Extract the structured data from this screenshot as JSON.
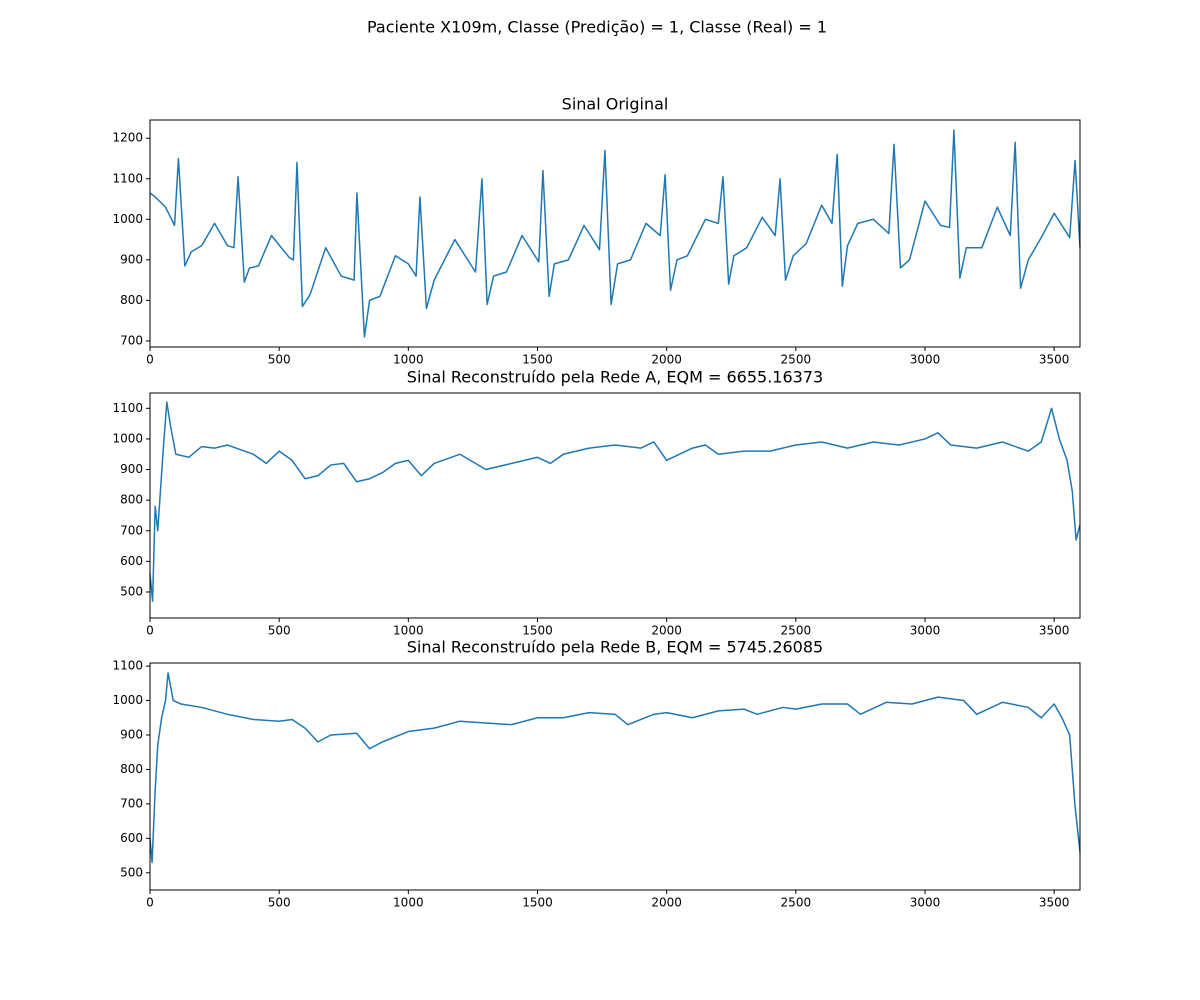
{
  "title": "Paciente X109m, Classe (Predição) = 1, Classe (Real) = 1",
  "chart_data": [
    {
      "type": "line",
      "title": "Sinal Original",
      "color": "#1f77b4",
      "xlim": [
        0,
        3600
      ],
      "xticks": [
        0,
        500,
        1000,
        1500,
        2000,
        2500,
        3000,
        3500
      ],
      "ylim": [
        685,
        1245
      ],
      "yticks": [
        700,
        800,
        900,
        1000,
        1100,
        1200
      ],
      "x": [
        0,
        20,
        60,
        95,
        110,
        135,
        160,
        200,
        250,
        300,
        325,
        341,
        365,
        385,
        420,
        470,
        540,
        555,
        569,
        590,
        620,
        680,
        740,
        790,
        801,
        830,
        850,
        890,
        950,
        1000,
        1030,
        1045,
        1070,
        1100,
        1180,
        1260,
        1285,
        1305,
        1330,
        1380,
        1440,
        1505,
        1521,
        1545,
        1565,
        1620,
        1680,
        1740,
        1761,
        1785,
        1810,
        1860,
        1920,
        1975,
        1994,
        2015,
        2040,
        2080,
        2150,
        2200,
        2218,
        2240,
        2260,
        2310,
        2370,
        2420,
        2439,
        2460,
        2490,
        2540,
        2600,
        2640,
        2660,
        2680,
        2700,
        2740,
        2800,
        2860,
        2880,
        2905,
        2940,
        3000,
        3060,
        3095,
        3112,
        3135,
        3160,
        3220,
        3280,
        3330,
        3349,
        3370,
        3400,
        3450,
        3500,
        3560,
        3581,
        3600
      ],
      "values": [
        1065,
        1055,
        1030,
        985,
        1150,
        885,
        920,
        935,
        990,
        935,
        930,
        1105,
        845,
        880,
        885,
        960,
        905,
        900,
        1140,
        785,
        815,
        930,
        860,
        850,
        1065,
        710,
        800,
        810,
        910,
        890,
        860,
        1055,
        780,
        850,
        950,
        870,
        1100,
        790,
        860,
        870,
        960,
        895,
        1120,
        810,
        890,
        900,
        985,
        925,
        1170,
        790,
        890,
        900,
        990,
        960,
        1110,
        825,
        900,
        910,
        1000,
        990,
        1105,
        840,
        910,
        930,
        1005,
        960,
        1100,
        850,
        910,
        940,
        1035,
        990,
        1160,
        835,
        935,
        990,
        1000,
        965,
        1185,
        880,
        900,
        1045,
        985,
        980,
        1220,
        855,
        930,
        930,
        1030,
        960,
        1190,
        830,
        900,
        955,
        1015,
        955,
        1145,
        930
      ]
    },
    {
      "type": "line",
      "title": "Sinal Reconstruído pela Rede A, EQM = 6655.16373",
      "color": "#1f77b4",
      "xlim": [
        0,
        3600
      ],
      "xticks": [
        0,
        500,
        1000,
        1500,
        2000,
        2500,
        3000,
        3500
      ],
      "ylim": [
        415,
        1150
      ],
      "yticks": [
        500,
        600,
        700,
        800,
        900,
        1000,
        1100
      ],
      "x": [
        0,
        10,
        20,
        30,
        50,
        65,
        80,
        100,
        150,
        200,
        250,
        300,
        400,
        450,
        500,
        550,
        600,
        650,
        700,
        750,
        800,
        850,
        900,
        950,
        1000,
        1050,
        1100,
        1200,
        1300,
        1400,
        1500,
        1550,
        1600,
        1700,
        1800,
        1900,
        1950,
        2000,
        2100,
        2150,
        2200,
        2300,
        2400,
        2500,
        2600,
        2700,
        2800,
        2900,
        3000,
        3050,
        3100,
        3200,
        3300,
        3400,
        3450,
        3490,
        3520,
        3550,
        3570,
        3585,
        3600
      ],
      "values": [
        560,
        470,
        780,
        700,
        950,
        1120,
        1040,
        950,
        940,
        975,
        970,
        980,
        950,
        920,
        960,
        930,
        870,
        880,
        915,
        920,
        860,
        870,
        890,
        920,
        930,
        880,
        920,
        950,
        900,
        920,
        940,
        920,
        950,
        970,
        980,
        970,
        990,
        930,
        970,
        980,
        950,
        960,
        960,
        980,
        990,
        970,
        990,
        980,
        1000,
        1020,
        980,
        970,
        990,
        960,
        990,
        1100,
        1000,
        930,
        830,
        670,
        720
      ]
    },
    {
      "type": "line",
      "title": "Sinal Reconstruído pela Rede B, EQM = 5745.26085",
      "color": "#1f77b4",
      "xlim": [
        0,
        3600
      ],
      "xticks": [
        0,
        500,
        1000,
        1500,
        2000,
        2500,
        3000,
        3500
      ],
      "ylim": [
        450,
        1109
      ],
      "yticks": [
        500,
        600,
        700,
        800,
        900,
        1000,
        1100
      ],
      "x": [
        0,
        8,
        20,
        30,
        45,
        60,
        70,
        90,
        120,
        200,
        300,
        400,
        500,
        550,
        600,
        650,
        700,
        800,
        850,
        900,
        1000,
        1100,
        1200,
        1300,
        1400,
        1500,
        1600,
        1700,
        1800,
        1850,
        1950,
        2000,
        2100,
        2200,
        2300,
        2350,
        2450,
        2500,
        2600,
        2700,
        2750,
        2850,
        2950,
        3050,
        3150,
        3200,
        3300,
        3400,
        3450,
        3500,
        3530,
        3560,
        3580,
        3600
      ],
      "values": [
        600,
        530,
        740,
        870,
        950,
        1000,
        1080,
        1000,
        990,
        980,
        960,
        945,
        940,
        945,
        920,
        880,
        900,
        905,
        860,
        880,
        910,
        920,
        940,
        935,
        930,
        950,
        950,
        965,
        960,
        930,
        960,
        965,
        950,
        970,
        975,
        960,
        980,
        975,
        990,
        990,
        960,
        995,
        990,
        1010,
        1000,
        960,
        995,
        980,
        950,
        990,
        950,
        900,
        700,
        560
      ]
    }
  ]
}
